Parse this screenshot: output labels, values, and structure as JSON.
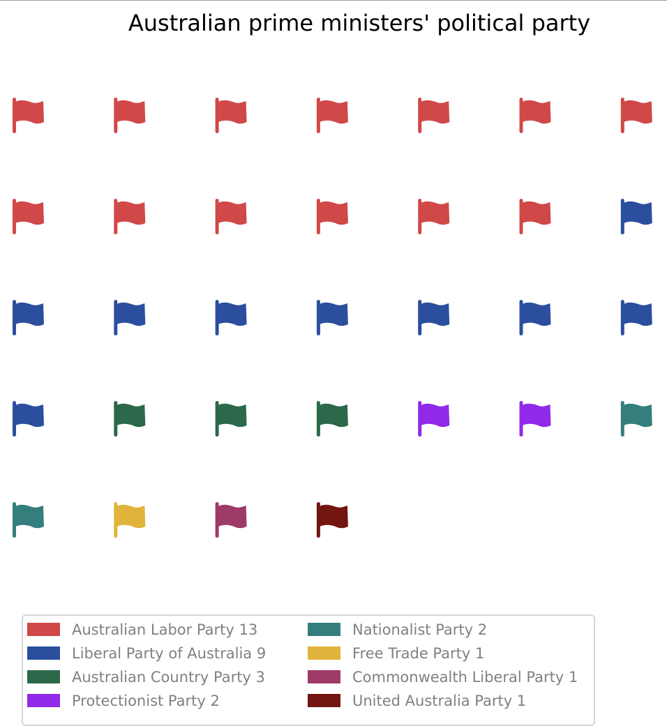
{
  "chart_data": {
    "type": "waffle",
    "title": "Australian prime ministers' political party",
    "icon": "flag-icon",
    "rows": 5,
    "columns": 7,
    "categories": [
      "Australian Labor Party",
      "Liberal Party of Australia",
      "Australian Country Party",
      "Protectionist Party",
      "Nationalist Party",
      "Free Trade Party",
      "Commonwealth Liberal Party",
      "United Australia Party"
    ],
    "values": [
      13,
      9,
      3,
      2,
      2,
      1,
      1,
      1
    ],
    "colors": [
      "#d04848",
      "#2b4f9e",
      "#2c684a",
      "#9129e8",
      "#357e7e",
      "#e0b43a",
      "#9e3a66",
      "#731510"
    ],
    "legend_labels": [
      "Australian Labor Party 13",
      "Liberal Party of Australia 9",
      "Australian Country Party 3",
      "Protectionist Party 2",
      "Nationalist Party 2",
      "Free Trade Party 1",
      "Commonwealth Liberal Party 1",
      "United Australia Party 1"
    ],
    "legend_position": "bottom-left",
    "legend_columns": 2,
    "grid": false
  }
}
